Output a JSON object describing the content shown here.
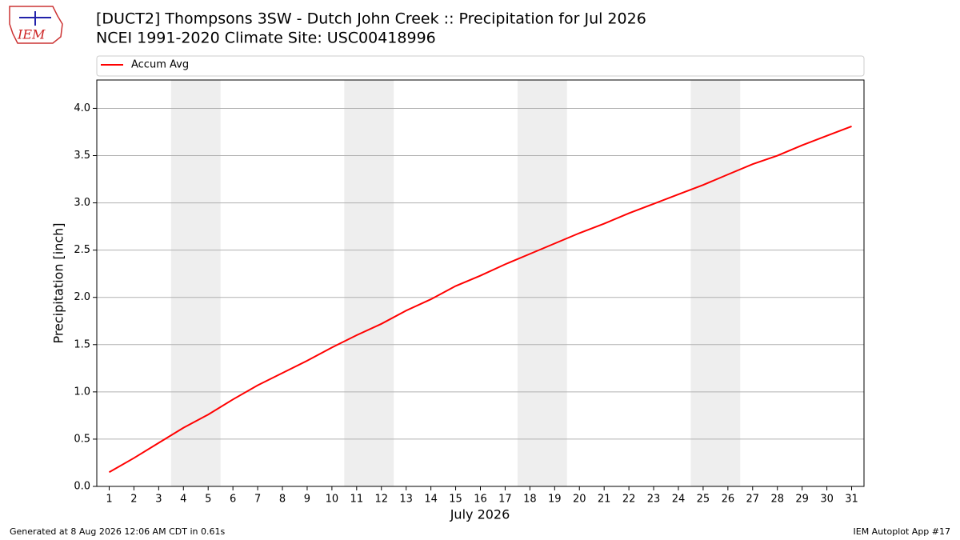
{
  "chart_data": {
    "type": "line",
    "title": "[DUCT2] Thompsons 3SW - Dutch John Creek :: Precipitation for Jul 2026",
    "subtitle": "NCEI 1991-2020 Climate Site: USC00418996",
    "logo_text": "IEM",
    "x_label": "July 2026",
    "y_label": "Precipitation [inch]",
    "footer_left": "Generated at 8 Aug 2026 12:06 AM CDT in 0.61s",
    "footer_right": "IEM Autoplot App #17",
    "x": [
      1,
      2,
      3,
      4,
      5,
      6,
      7,
      8,
      9,
      10,
      11,
      12,
      13,
      14,
      15,
      16,
      17,
      18,
      19,
      20,
      21,
      22,
      23,
      24,
      25,
      26,
      27,
      28,
      29,
      30,
      31
    ],
    "series": [
      {
        "name": "Accum Avg",
        "color": "#ff0000",
        "values": [
          0.15,
          0.3,
          0.46,
          0.62,
          0.76,
          0.92,
          1.07,
          1.2,
          1.33,
          1.47,
          1.6,
          1.72,
          1.86,
          1.98,
          2.12,
          2.23,
          2.35,
          2.46,
          2.57,
          2.68,
          2.78,
          2.89,
          2.99,
          3.09,
          3.19,
          3.3,
          3.41,
          3.5,
          3.61,
          3.71,
          3.81
        ]
      }
    ],
    "shaded_spans": [
      [
        3.5,
        5.5
      ],
      [
        10.5,
        12.5
      ],
      [
        17.5,
        19.5
      ],
      [
        24.5,
        26.5
      ]
    ],
    "shade_color": "#eeeeee",
    "xlim": [
      0.5,
      31.5
    ],
    "xticks": [
      1,
      2,
      3,
      4,
      5,
      6,
      7,
      8,
      9,
      10,
      11,
      12,
      13,
      14,
      15,
      16,
      17,
      18,
      19,
      20,
      21,
      22,
      23,
      24,
      25,
      26,
      27,
      28,
      29,
      30,
      31
    ],
    "ylim": [
      0,
      4.3
    ],
    "yticks": [
      {
        "value": 0,
        "label": "0.0"
      },
      0.5,
      {
        "value": 1,
        "label": "1.0"
      },
      1.5,
      {
        "value": 2,
        "label": "2.0"
      },
      2.5,
      {
        "value": 3,
        "label": "3.0"
      },
      3.5,
      {
        "value": 4,
        "label": "4.0"
      }
    ],
    "grid": true,
    "legend": "top"
  }
}
